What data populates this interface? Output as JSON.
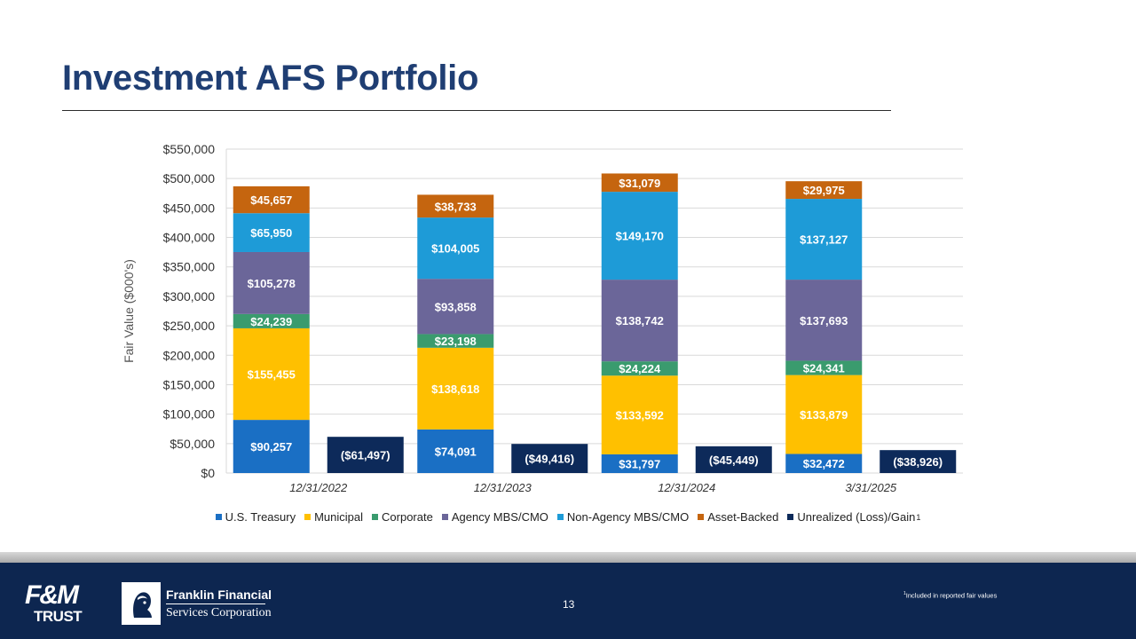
{
  "slide": {
    "title": "Investment AFS Portfolio",
    "page_number": "13",
    "footnote_marker": "1",
    "footnote": "Included in reported fair values"
  },
  "logos": {
    "fm_top": "F&M",
    "fm_bottom": "TRUST",
    "ff_line1": "Franklin Financial",
    "ff_line2": "Services Corporation"
  },
  "colors": {
    "title": "#1f3e73",
    "footer": "#0d2650"
  },
  "chart_data": {
    "type": "bar",
    "stacked": true,
    "title": "",
    "xlabel": "",
    "ylabel": "Fair Value ($000's)",
    "ylim": [
      0,
      550000
    ],
    "ytick_step": 50000,
    "yticks": [
      "$0",
      "$50,000",
      "$100,000",
      "$150,000",
      "$200,000",
      "$250,000",
      "$300,000",
      "$350,000",
      "$400,000",
      "$450,000",
      "$500,000",
      "$550,000"
    ],
    "grid": true,
    "legend_position": "bottom",
    "categories": [
      "12/31/2022",
      "12/31/2023",
      "12/31/2024",
      "3/31/2025"
    ],
    "series": [
      {
        "name": "U.S. Treasury",
        "color": "#1a6fc4",
        "values": [
          90257,
          74091,
          31797,
          32472
        ],
        "labels": [
          "$90,257",
          "$74,091",
          "$31,797",
          "$32,472"
        ]
      },
      {
        "name": "Municipal",
        "color": "#ffc000",
        "values": [
          155455,
          138618,
          133592,
          133879
        ],
        "labels": [
          "$155,455",
          "$138,618",
          "$133,592",
          "$133,879"
        ]
      },
      {
        "name": "Corporate",
        "color": "#3a9b6e",
        "values": [
          24239,
          23198,
          24224,
          24341
        ],
        "labels": [
          "$24,239",
          "$23,198",
          "$24,224",
          "$24,341"
        ]
      },
      {
        "name": "Agency MBS/CMO",
        "color": "#6b6699",
        "values": [
          105278,
          93858,
          138742,
          137693
        ],
        "labels": [
          "$105,278",
          "$93,858",
          "$138,742",
          "$137,693"
        ]
      },
      {
        "name": "Non-Agency MBS/CMO",
        "color": "#1e9bd7",
        "values": [
          65950,
          104005,
          149170,
          137127
        ],
        "labels": [
          "$65,950",
          "$104,005",
          "$149,170",
          "$137,127"
        ]
      },
      {
        "name": "Asset-Backed",
        "color": "#c5650f",
        "values": [
          45657,
          38733,
          31079,
          29975
        ],
        "labels": [
          "$45,657",
          "$38,733",
          "$31,079",
          "$29,975"
        ]
      }
    ],
    "unrealized": {
      "name": "Unrealized (Loss)/Gain",
      "superscript": "1",
      "color": "#0d2a5a",
      "values": [
        -61497,
        -49416,
        -45449,
        -38926
      ],
      "labels": [
        "($61,497)",
        "($49,416)",
        "($45,449)",
        "($38,926)"
      ]
    }
  }
}
